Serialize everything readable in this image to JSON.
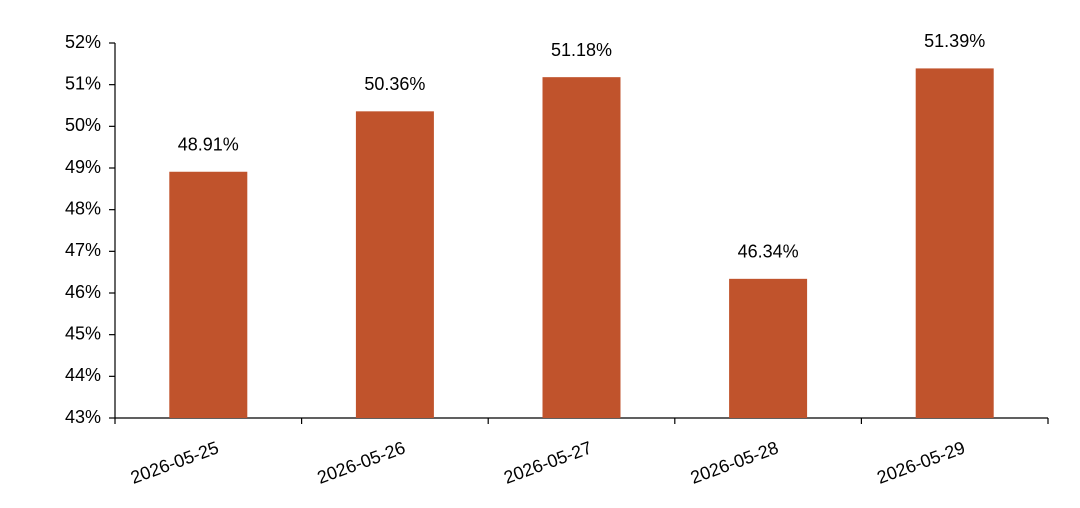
{
  "chart_data": {
    "type": "bar",
    "categories": [
      "2026-05-25",
      "2026-05-26",
      "2026-05-27",
      "2026-05-28",
      "2026-05-29"
    ],
    "values": [
      48.91,
      50.36,
      51.18,
      46.34,
      51.39
    ],
    "value_labels": [
      "48.91%",
      "50.36%",
      "51.18%",
      "46.34%",
      "51.39%"
    ],
    "color": "#c0532c",
    "ylim": [
      43,
      52
    ],
    "yticks": [
      {
        "value": 43,
        "label": "43%"
      },
      {
        "value": 44,
        "label": "44%"
      },
      {
        "value": 45,
        "label": "45%"
      },
      {
        "value": 46,
        "label": "46%"
      },
      {
        "value": 47,
        "label": "47%"
      },
      {
        "value": 48,
        "label": "48%"
      },
      {
        "value": 49,
        "label": "49%"
      },
      {
        "value": 50,
        "label": "50%"
      },
      {
        "value": 51,
        "label": "51%"
      },
      {
        "value": 52,
        "label": "52%"
      }
    ],
    "grid": false
  }
}
